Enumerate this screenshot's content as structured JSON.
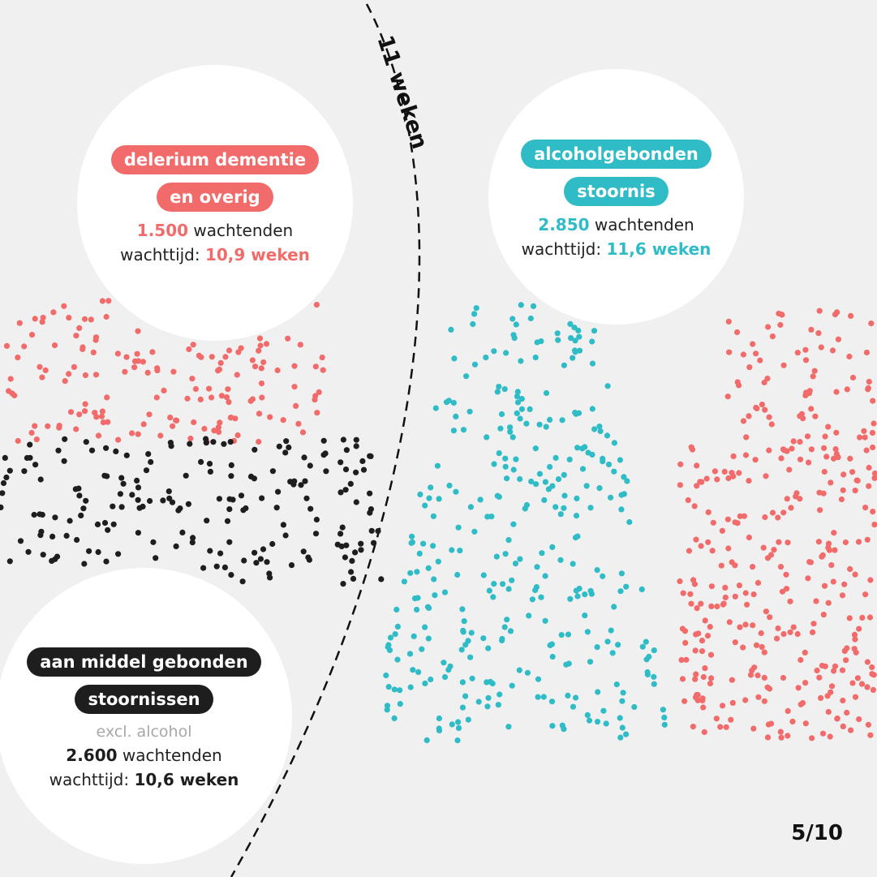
{
  "chart_data": {
    "type": "scatter",
    "reference_line": {
      "label": "11 weken",
      "value_weeks": 11
    },
    "groups": [
      {
        "id": "delirium",
        "label_lines": [
          "delerium dementie",
          "en overig"
        ],
        "waiting": "1.500",
        "waiting_label": "wachtenden",
        "time_label": "wachttijd:",
        "time": "10,9 weken",
        "color": "#f26b6b"
      },
      {
        "id": "alcohol",
        "label_lines": [
          "alcoholgebonden",
          "stoornis"
        ],
        "waiting": "2.850",
        "waiting_label": "wachtenden",
        "time_label": "wachttijd:",
        "time": "11,6 weken",
        "color": "#2fbcc6"
      },
      {
        "id": "substance",
        "label_lines": [
          "aan middel gebonden",
          "stoornissen"
        ],
        "note": "excl. alcohol",
        "waiting": "2.600",
        "waiting_label": "wachtenden",
        "time_label": "wachttijd:",
        "time": "10,6 weken",
        "color": "#1e1e1e"
      }
    ]
  },
  "page_indicator": "5/10"
}
